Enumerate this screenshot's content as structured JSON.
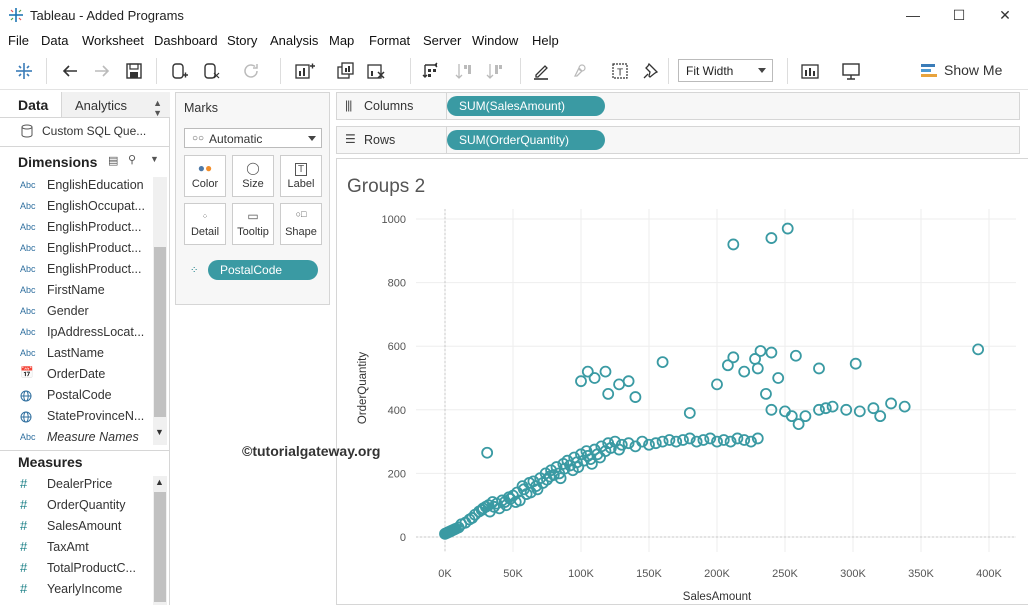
{
  "window": {
    "title": "Tableau - Added Programs",
    "minimize": "—",
    "maximize": "☐",
    "close": "✕"
  },
  "menu": [
    "File",
    "Data",
    "Worksheet",
    "Dashboard",
    "Story",
    "Analysis",
    "Map",
    "Format",
    "Server",
    "Window",
    "Help"
  ],
  "toolbar": {
    "fit": "Fit Width",
    "show_me": "Show Me"
  },
  "data_pane": {
    "tab_data": "Data",
    "tab_analytics": "Analytics",
    "datasource": "Custom SQL Que...",
    "dimensions_header": "Dimensions",
    "dimensions": [
      {
        "type": "Abc",
        "name": "EnglishEducation"
      },
      {
        "type": "Abc",
        "name": "EnglishOccupat..."
      },
      {
        "type": "Abc",
        "name": "EnglishProduct..."
      },
      {
        "type": "Abc",
        "name": "EnglishProduct..."
      },
      {
        "type": "Abc",
        "name": "EnglishProduct..."
      },
      {
        "type": "Abc",
        "name": "FirstName"
      },
      {
        "type": "Abc",
        "name": "Gender"
      },
      {
        "type": "Abc",
        "name": "IpAddressLocat..."
      },
      {
        "type": "Abc",
        "name": "LastName"
      },
      {
        "type": "date",
        "name": "OrderDate"
      },
      {
        "type": "geo",
        "name": "PostalCode"
      },
      {
        "type": "geo",
        "name": "StateProvinceN..."
      },
      {
        "type": "Abc",
        "name": "Measure Names"
      }
    ],
    "measures_header": "Measures",
    "measures": [
      "DealerPrice",
      "OrderQuantity",
      "SalesAmount",
      "TaxAmt",
      "TotalProductC...",
      "YearlyIncome"
    ]
  },
  "marks": {
    "title": "Marks",
    "type": "Automatic",
    "buttons": [
      "Color",
      "Size",
      "Label",
      "Detail",
      "Tooltip",
      "Shape"
    ],
    "detail_pill": "PostalCode"
  },
  "shelves": {
    "columns_label": "Columns",
    "columns_pill": "SUM(SalesAmount)",
    "rows_label": "Rows",
    "rows_pill": "SUM(OrderQuantity)"
  },
  "sheet": {
    "title": "Groups 2",
    "watermark": "©tutorialgateway.org"
  },
  "chart_data": {
    "type": "scatter",
    "title": "Groups 2",
    "xlabel": "SalesAmount",
    "ylabel": "OrderQuantity",
    "xlim": [
      0,
      400000
    ],
    "ylim": [
      0,
      1000
    ],
    "x_ticks": [
      "0K",
      "50K",
      "100K",
      "150K",
      "200K",
      "250K",
      "300K",
      "350K",
      "400K"
    ],
    "y_ticks": [
      "0",
      "200",
      "400",
      "600",
      "800",
      "1000"
    ],
    "marker": "open-circle",
    "color": "#3a9aa3",
    "grid": true,
    "series": [
      {
        "x": [
          0,
          1000,
          2000,
          3000,
          4000,
          5000,
          6000,
          7000,
          8000,
          10000,
          12000,
          15000,
          18000,
          20000,
          22000,
          25000,
          27000,
          28000,
          30000,
          32000,
          33000,
          35000,
          36000,
          38000,
          40000,
          42000,
          44000,
          45000,
          47000,
          48000,
          50000,
          52000,
          53000,
          55000,
          57000,
          58000,
          60000,
          62000,
          63000,
          65000,
          67000,
          68000,
          70000,
          72000,
          74000,
          75000,
          77000,
          78000,
          80000,
          82000,
          84000,
          85000,
          87000,
          88000,
          90000,
          92000,
          94000,
          95000,
          97000,
          98000,
          100000,
          102000,
          104000,
          105000,
          107000,
          108000,
          110000,
          112000,
          114000,
          115000,
          118000,
          120000,
          122000,
          125000,
          128000,
          130000,
          135000,
          140000,
          145000,
          150000,
          155000,
          160000,
          165000,
          170000,
          175000,
          180000,
          185000,
          190000,
          195000,
          200000,
          205000,
          210000,
          215000,
          220000,
          225000,
          230000,
          240000,
          250000,
          255000,
          260000,
          265000,
          275000,
          280000,
          285000,
          295000,
          305000,
          315000,
          320000,
          328000,
          338000,
          31000,
          100000,
          105000,
          110000,
          118000,
          120000,
          128000,
          135000,
          140000,
          160000,
          180000,
          200000,
          208000,
          212000,
          220000,
          228000,
          230000,
          232000,
          236000,
          240000,
          245000,
          258000,
          275000,
          302000,
          392000,
          212000,
          240000,
          252000
        ],
        "y": [
          10,
          12,
          14,
          16,
          18,
          20,
          22,
          24,
          26,
          30,
          40,
          45,
          55,
          60,
          70,
          80,
          85,
          90,
          95,
          100,
          80,
          110,
          95,
          105,
          90,
          115,
          110,
          100,
          125,
          120,
          130,
          110,
          140,
          115,
          160,
          150,
          135,
          170,
          140,
          175,
          160,
          150,
          185,
          170,
          200,
          180,
          190,
          210,
          195,
          220,
          200,
          185,
          230,
          215,
          240,
          225,
          210,
          250,
          235,
          220,
          260,
          240,
          270,
          255,
          245,
          230,
          275,
          260,
          250,
          285,
          270,
          295,
          280,
          300,
          275,
          290,
          295,
          285,
          300,
          290,
          295,
          300,
          305,
          300,
          305,
          310,
          300,
          305,
          310,
          300,
          305,
          300,
          310,
          305,
          300,
          310,
          400,
          395,
          380,
          355,
          380,
          400,
          405,
          410,
          400,
          395,
          405,
          380,
          420,
          410,
          265,
          490,
          520,
          500,
          520,
          450,
          480,
          490,
          440,
          550,
          390,
          480,
          540,
          565,
          520,
          560,
          530,
          585,
          450,
          580,
          500,
          570,
          530,
          545,
          590,
          920,
          940,
          970
        ]
      }
    ]
  }
}
